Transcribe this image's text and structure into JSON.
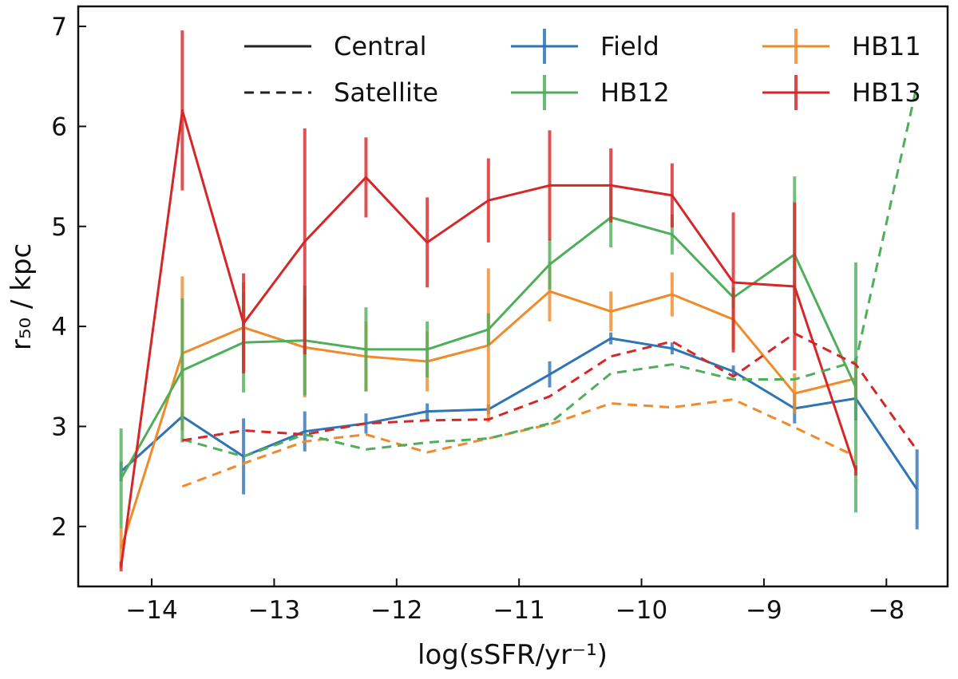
{
  "chart_data": {
    "type": "line",
    "title": "",
    "xlabel": "log(sSFR/yr⁻¹)",
    "ylabel": "r₅₀ / kpc",
    "xlim": [
      -14.6,
      -7.5
    ],
    "ylim": [
      1.4,
      7.2
    ],
    "xticks": [
      -14,
      -13,
      -12,
      -11,
      -10,
      -9,
      -8
    ],
    "xtick_labels": [
      "−14",
      "−13",
      "−12",
      "−11",
      "−10",
      "−9",
      "−8"
    ],
    "yticks": [
      2,
      3,
      4,
      5,
      6,
      7
    ],
    "ytick_labels": [
      "2",
      "3",
      "4",
      "5",
      "6",
      "7"
    ],
    "grid": false,
    "legend_position": "top-right",
    "legend_styles": [
      {
        "label": "Central",
        "dash": "solid",
        "color": "#222222"
      },
      {
        "label": "Satellite",
        "dash": "dashed",
        "color": "#222222"
      }
    ],
    "legend_series": [
      {
        "label": "Field",
        "color": "#2f74b5"
      },
      {
        "label": "HB12",
        "color": "#4fae5a"
      },
      {
        "label": "HB11",
        "color": "#f08a2a"
      },
      {
        "label": "HB13",
        "color": "#d62728"
      }
    ],
    "series": [
      {
        "name": "Field",
        "kind": "Central",
        "color": "#2f74b5",
        "x": [
          -14.25,
          -13.75,
          -13.25,
          -12.75,
          -12.25,
          -11.75,
          -11.25,
          -10.75,
          -10.25,
          -9.75,
          -9.25,
          -8.75,
          -8.25,
          -7.75
        ],
        "y": [
          2.55,
          3.1,
          2.7,
          2.95,
          3.03,
          3.15,
          3.17,
          3.52,
          3.88,
          3.78,
          3.55,
          3.18,
          3.28,
          2.37
        ],
        "err": [
          0.1,
          0.05,
          0.38,
          0.2,
          0.1,
          0.08,
          0.05,
          0.13,
          0.06,
          0.06,
          0.06,
          0.15,
          0.22,
          0.4
        ]
      },
      {
        "name": "HB11",
        "kind": "Central",
        "color": "#f08a2a",
        "x": [
          -14.25,
          -13.75,
          -13.25,
          -12.75,
          -12.25,
          -11.75,
          -11.25,
          -10.75,
          -10.25,
          -9.75,
          -9.25,
          -8.75,
          -8.25
        ],
        "y": [
          1.78,
          3.73,
          3.99,
          3.79,
          3.7,
          3.65,
          3.81,
          4.35,
          4.15,
          4.32,
          4.07,
          3.33,
          3.48
        ],
        "err": [
          0.2,
          0.77,
          0.45,
          0.5,
          0.35,
          0.3,
          0.77,
          0.3,
          0.2,
          0.22,
          0.3,
          0.2,
          0.2
        ]
      },
      {
        "name": "HB12",
        "kind": "Central",
        "color": "#4fae5a",
        "x": [
          -14.25,
          -13.75,
          -13.25,
          -12.75,
          -12.25,
          -11.75,
          -11.25,
          -10.75,
          -10.25,
          -9.75,
          -9.25,
          -8.75,
          -8.25
        ],
        "y": [
          2.48,
          3.56,
          3.84,
          3.86,
          3.77,
          3.77,
          3.97,
          4.62,
          5.09,
          4.92,
          4.29,
          4.72,
          3.39
        ],
        "err": [
          0.5,
          0.72,
          0.5,
          0.55,
          0.42,
          0.28,
          0.16,
          0.25,
          0.3,
          0.2,
          0.1,
          0.78,
          1.25
        ]
      },
      {
        "name": "HB13",
        "kind": "Central",
        "color": "#d62728",
        "x": [
          -14.25,
          -13.75,
          -13.25,
          -12.75,
          -12.25,
          -11.75,
          -11.25,
          -10.75,
          -10.25,
          -9.75,
          -9.25,
          -8.75,
          -8.25
        ],
        "y": [
          1.6,
          6.16,
          4.03,
          4.85,
          5.49,
          4.84,
          5.26,
          5.41,
          5.41,
          5.31,
          4.44,
          4.4,
          2.56
        ],
        "err": [
          0.05,
          0.8,
          0.5,
          1.13,
          0.4,
          0.45,
          0.42,
          0.55,
          0.37,
          0.32,
          0.7,
          0.84,
          0.05
        ]
      },
      {
        "name": "HB11",
        "kind": "Satellite",
        "color": "#f08a2a",
        "x": [
          -13.75,
          -13.25,
          -12.75,
          -12.25,
          -11.75,
          -11.25,
          -10.75,
          -10.25,
          -9.75,
          -9.25,
          -8.75,
          -8.25
        ],
        "y": [
          2.4,
          2.63,
          2.85,
          2.92,
          2.74,
          2.88,
          3.02,
          3.23,
          3.19,
          3.27,
          2.99,
          2.7
        ],
        "err": []
      },
      {
        "name": "HB12",
        "kind": "Satellite",
        "color": "#4fae5a",
        "x": [
          -13.75,
          -13.25,
          -12.75,
          -12.25,
          -11.75,
          -11.25,
          -10.75,
          -10.25,
          -9.75,
          -9.25,
          -8.75,
          -8.25,
          -7.75
        ],
        "y": [
          2.87,
          2.7,
          2.92,
          2.77,
          2.84,
          2.88,
          3.03,
          3.53,
          3.62,
          3.47,
          3.47,
          3.65,
          6.42
        ],
        "err": []
      },
      {
        "name": "HB13",
        "kind": "Satellite",
        "color": "#d62728",
        "x": [
          -13.75,
          -13.25,
          -12.75,
          -12.25,
          -11.75,
          -11.25,
          -10.75,
          -10.25,
          -9.75,
          -9.25,
          -8.75,
          -8.25,
          -7.75
        ],
        "y": [
          2.86,
          2.96,
          2.92,
          3.03,
          3.06,
          3.07,
          3.3,
          3.7,
          3.85,
          3.5,
          3.93,
          3.62,
          2.76
        ],
        "err": []
      }
    ]
  }
}
